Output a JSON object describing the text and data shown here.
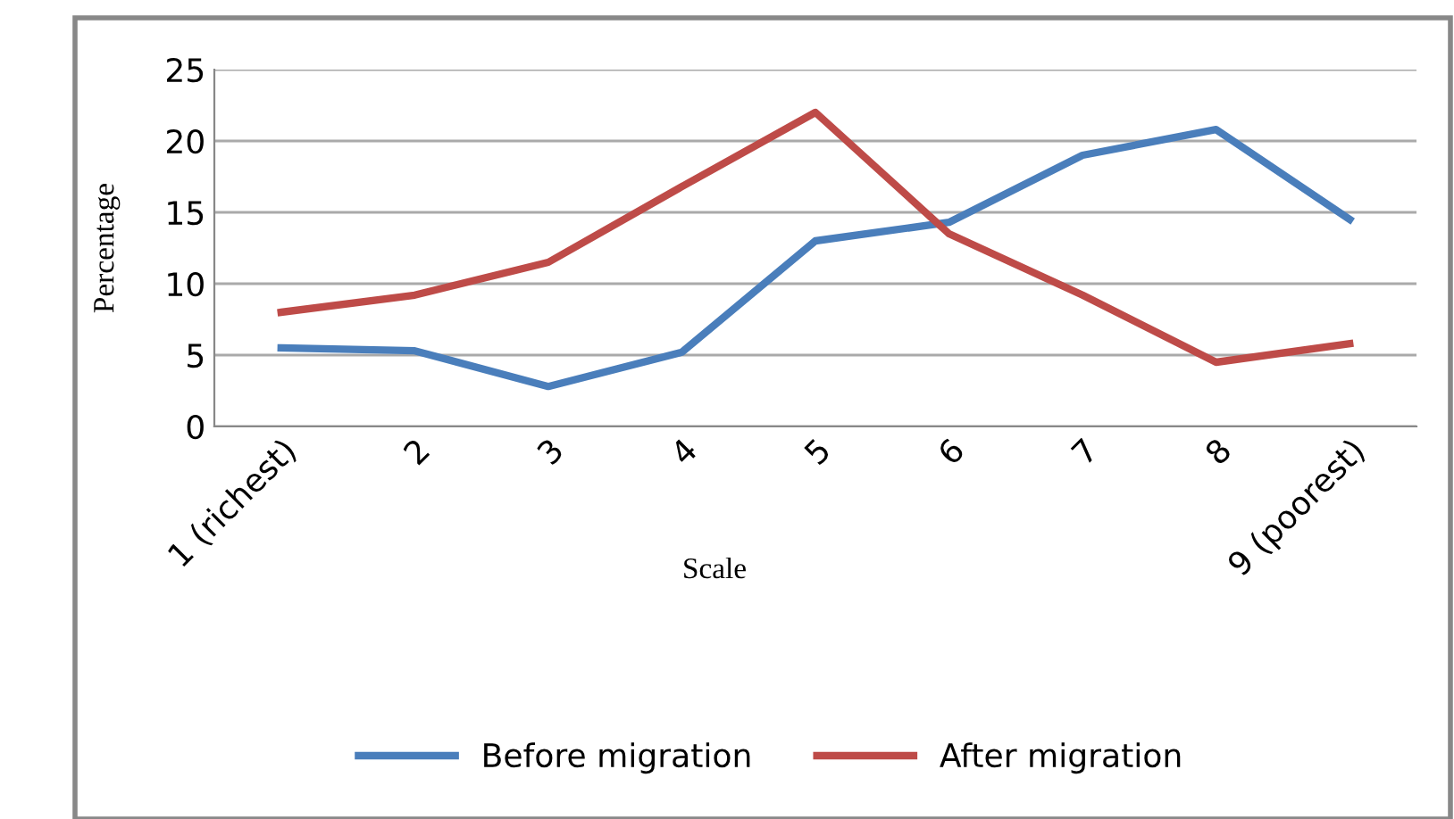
{
  "chart_data": {
    "type": "line",
    "xlabel": "Scale",
    "ylabel": "Percentage",
    "categories": [
      "1 (richest)",
      "2",
      "3",
      "4",
      "5",
      "6",
      "7",
      "8",
      "9 (poorest)"
    ],
    "series": [
      {
        "name": "Before migration",
        "color": "#4a7ebb",
        "values": [
          5.5,
          5.3,
          2.8,
          5.2,
          13,
          14.3,
          19,
          20.8,
          14.5
        ]
      },
      {
        "name": "After migration",
        "color": "#be4b48",
        "values": [
          8,
          9.2,
          11.5,
          16.8,
          22,
          13.5,
          9.2,
          4.5,
          5.8
        ]
      }
    ],
    "ylim": [
      0,
      25
    ],
    "yticks": [
      0,
      5,
      10,
      15,
      20,
      25
    ],
    "grid": "y",
    "legend": "bottom",
    "marker": "none",
    "line_style": "solid"
  }
}
